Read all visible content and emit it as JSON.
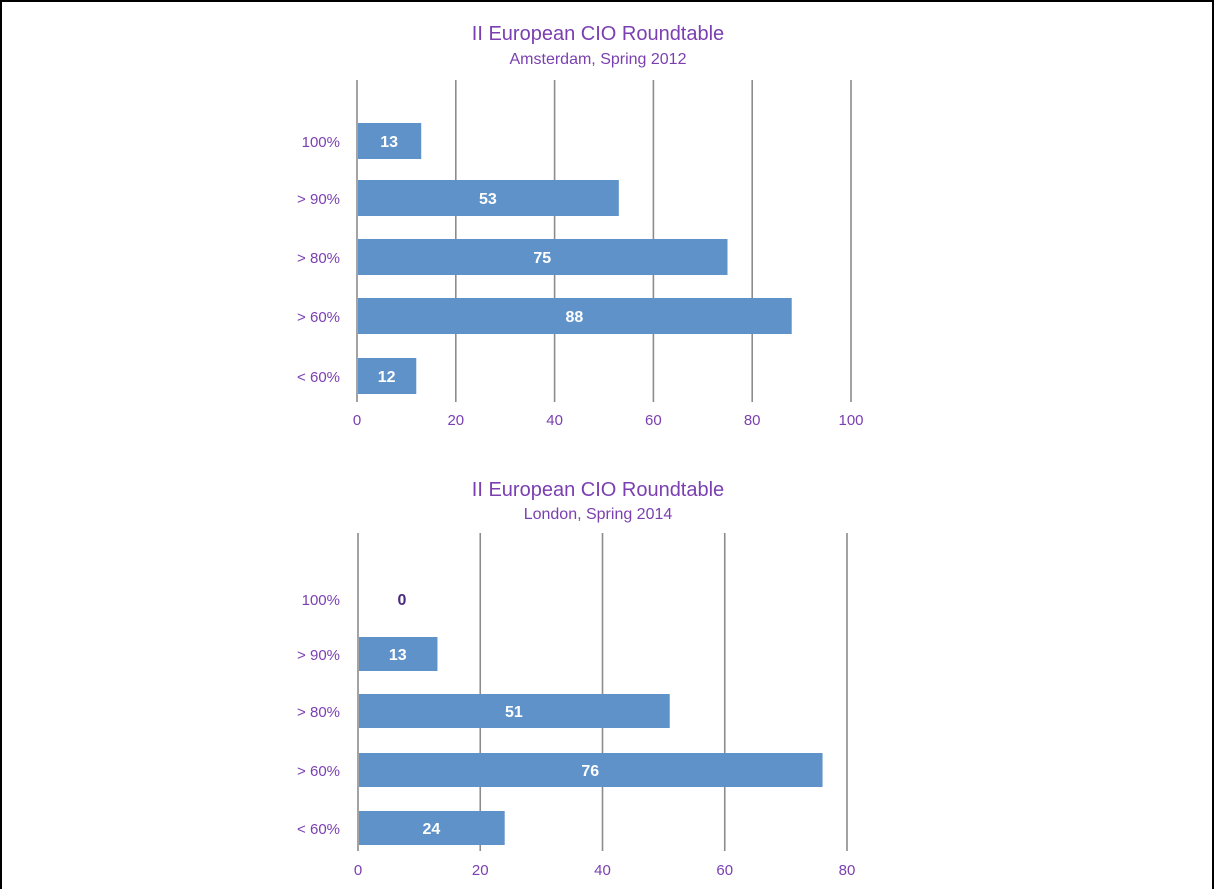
{
  "colors": {
    "bar": "#5f92c9",
    "text": "#7a3fb0",
    "grid": "#8c8c8c"
  },
  "chart_data": [
    {
      "type": "bar",
      "orientation": "horizontal",
      "title": "II European CIO Roundtable",
      "subtitle": "Amsterdam, Spring 2012",
      "categories": [
        "100%",
        "> 90%",
        "> 80%",
        "> 60%",
        "< 60%"
      ],
      "values": [
        13,
        53,
        75,
        88,
        12
      ],
      "xlim": [
        0,
        100
      ],
      "xticks": [
        "0",
        "20",
        "40",
        "60",
        "80",
        "100"
      ],
      "grid": "vertical",
      "legend": "none"
    },
    {
      "type": "bar",
      "orientation": "horizontal",
      "title": "II European CIO Roundtable",
      "subtitle": "London, Spring 2014",
      "categories": [
        "100%",
        "> 90%",
        "> 80%",
        "> 60%",
        "< 60%"
      ],
      "values": [
        0,
        13,
        51,
        76,
        24
      ],
      "xlim": [
        0,
        80
      ],
      "xticks": [
        "0",
        "20",
        "40",
        "60",
        "80"
      ],
      "grid": "vertical",
      "legend": "none"
    }
  ]
}
